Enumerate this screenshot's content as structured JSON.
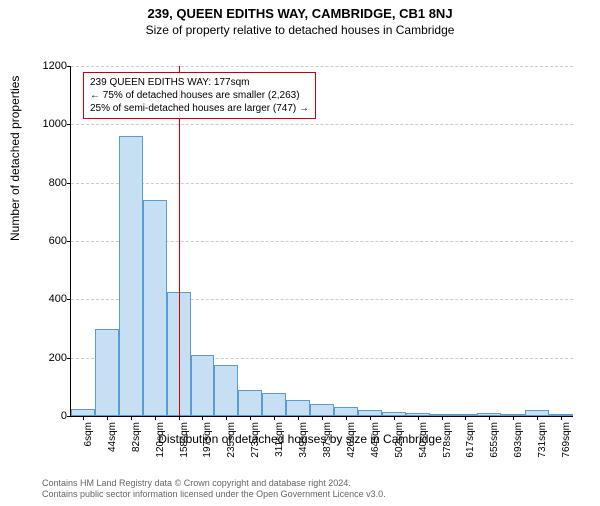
{
  "title": "239, QUEEN EDITHS WAY, CAMBRIDGE, CB1 8NJ",
  "subtitle": "Size of property relative to detached houses in Cambridge",
  "title_fontsize": 13,
  "subtitle_fontsize": 12,
  "ylabel": "Number of detached properties",
  "xlabel": "Distribution of detached houses by size in Cambridge",
  "axis_fontsize": 12,
  "footer_line1": "Contains HM Land Registry data © Crown copyright and database right 2024.",
  "footer_line2": "Contains public sector information licensed under the Open Government Licence v3.0.",
  "chart": {
    "type": "histogram",
    "ylim": [
      0,
      1200
    ],
    "yticks": [
      0,
      200,
      400,
      600,
      800,
      1000,
      1200
    ],
    "xcategories": [
      "6sqm",
      "44sqm",
      "82sqm",
      "120sqm",
      "158sqm",
      "197sqm",
      "235sqm",
      "273sqm",
      "311sqm",
      "349sqm",
      "387sqm",
      "426sqm",
      "464sqm",
      "502sqm",
      "540sqm",
      "578sqm",
      "617sqm",
      "655sqm",
      "693sqm",
      "731sqm",
      "769sqm"
    ],
    "values": [
      25,
      300,
      960,
      740,
      425,
      210,
      175,
      90,
      80,
      55,
      40,
      30,
      20,
      15,
      10,
      8,
      5,
      10,
      3,
      20,
      3
    ],
    "bar_fill": "#c7dff2",
    "bar_stroke": "#5a9bd4",
    "grid_color": "#cccccc",
    "background": "#ffffff",
    "marker_x_index": 4.5,
    "marker_color": "#cc0000"
  },
  "annotation": {
    "line1": "239 QUEEN EDITHS WAY: 177sqm",
    "line2": "← 75% of detached houses are smaller (2,263)",
    "line3": "25% of semi-detached houses are larger (747) →",
    "border_color": "#cc0000"
  }
}
